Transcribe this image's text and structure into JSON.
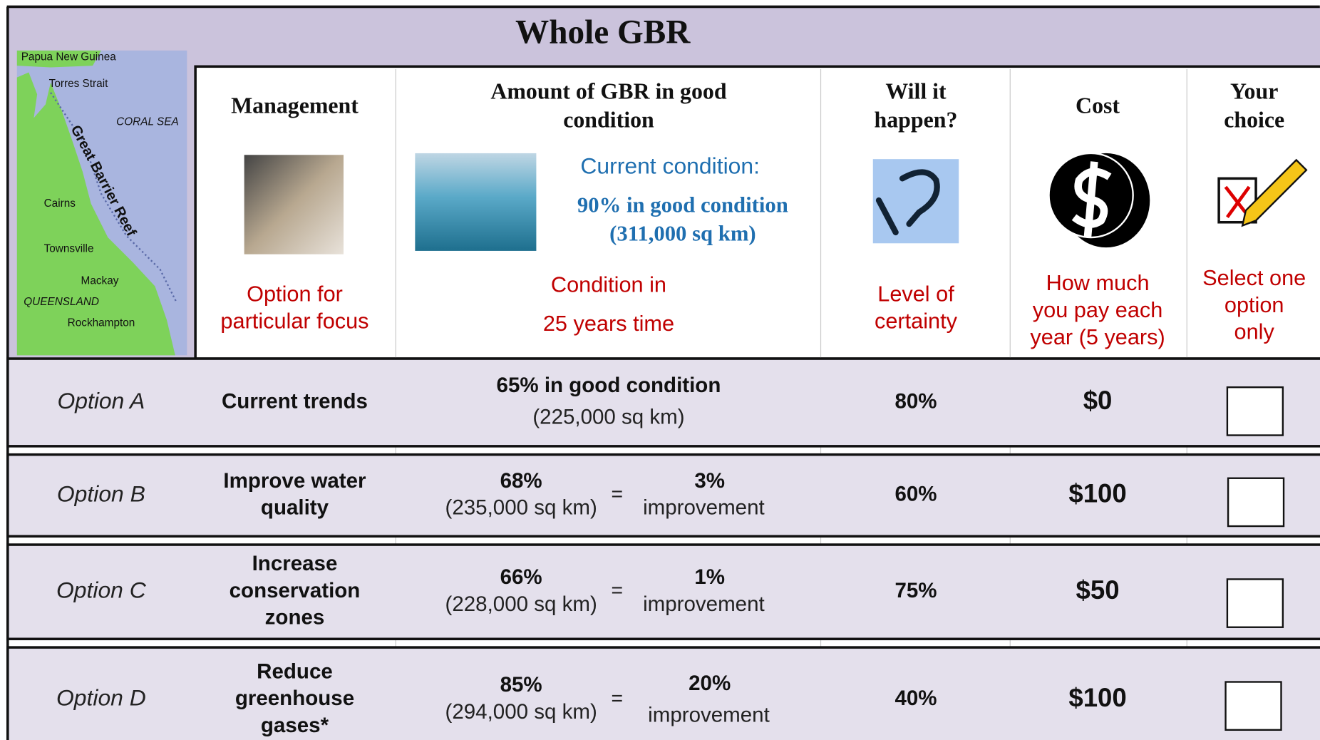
{
  "title": "Whole GBR",
  "map": {
    "labels": [
      "Papua New Guinea",
      "Torres Strait",
      "CORAL SEA",
      "Great Barrier Reef",
      "Cairns",
      "Townsville",
      "Mackay",
      "QUEENSLAND",
      "Rockhampton"
    ]
  },
  "header": {
    "columns": [
      {
        "title": [
          "Management"
        ],
        "subtitle": [
          "Option for",
          "particular focus"
        ]
      },
      {
        "title": [
          "Amount of GBR in good",
          "condition"
        ],
        "subtitle": [
          "Condition in",
          "25 years time"
        ]
      },
      {
        "title": [
          "Will it",
          "happen?"
        ],
        "subtitle": [
          "Level of",
          "certainty"
        ]
      },
      {
        "title": [
          "Cost"
        ],
        "subtitle": [
          "How much",
          "you pay each",
          "year (5 years)"
        ]
      },
      {
        "title": [
          "Your",
          "choice"
        ],
        "subtitle": [
          "Select one",
          "option",
          "only"
        ]
      }
    ],
    "current": {
      "heading": "Current condition:",
      "lines": [
        "90% in good condition",
        "(311,000 sq km)"
      ]
    }
  },
  "rows": [
    {
      "option": "Option A",
      "management": [
        "Current trends"
      ],
      "condition": "65% in good condition",
      "area": "(225,000 sq km)",
      "certainty": "80%",
      "cost": "$0"
    },
    {
      "option": "Option B",
      "management": [
        "Improve water",
        "quality"
      ],
      "condition": "68%",
      "area": "(235,000 sq km)",
      "equals": "=",
      "improvement": [
        "3%",
        "improvement"
      ],
      "certainty": "60%",
      "cost": "$100"
    },
    {
      "option": "Option C",
      "management": [
        "Increase",
        "conservation",
        "zones"
      ],
      "condition": "66%",
      "area": "(228,000 sq km)",
      "equals": "=",
      "improvement": [
        "1%",
        "improvement"
      ],
      "certainty": "75%",
      "cost": "$50"
    },
    {
      "option": "Option D",
      "management": [
        "Reduce",
        "greenhouse",
        "gases*"
      ],
      "condition": "85%",
      "area": "(294,000 sq km)",
      "equals": "=",
      "improvement": [
        "20%",
        "improvement"
      ],
      "certainty": "40%",
      "cost": "$100"
    }
  ]
}
